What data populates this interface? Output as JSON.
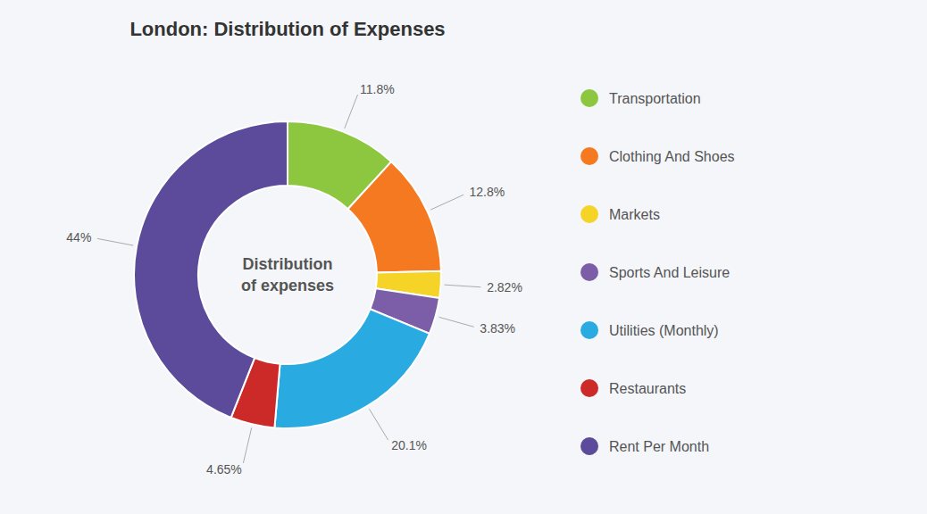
{
  "chart_data": {
    "type": "pie",
    "title": "London: Distribution of Expenses",
    "annotations": [
      "Distribution",
      "of expenses"
    ],
    "categories": [
      "Transportation",
      "Clothing And Shoes",
      "Markets",
      "Sports And Leisure",
      "Utilities (Monthly)",
      "Restaurants",
      "Rent Per Month"
    ],
    "values": [
      11.8,
      12.8,
      2.82,
      3.83,
      20.1,
      4.65,
      44
    ],
    "value_labels": [
      "11.8%",
      "12.8%",
      "2.82%",
      "3.83%",
      "20.1%",
      "4.65%",
      "44%"
    ],
    "colors": [
      "#8dc63f",
      "#f47920",
      "#f5d327",
      "#7b5ea7",
      "#29abe2",
      "#cc2929",
      "#5c4b9b"
    ],
    "data_labels": true,
    "legend": "right"
  }
}
